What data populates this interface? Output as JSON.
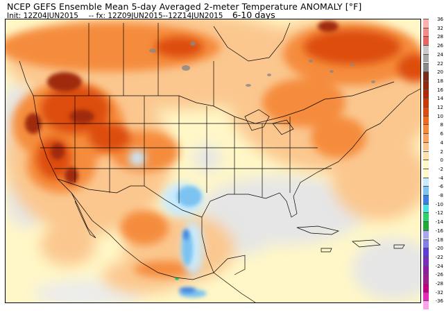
{
  "header": {
    "title": "NCEP GEFS Ensemble Mean 5-day Averaged 2-meter Temperature ANOMALY [°F]",
    "init_label": "Init:",
    "init_value": "12Z04JUN2015",
    "dashes": "--",
    "fx_label": "fx:",
    "fx_value": "12Z09JUN2015--12Z14JUN2015",
    "period": "6-10 days"
  },
  "legend": {
    "levels": [
      "36",
      "32",
      "28",
      "26",
      "24",
      "22",
      "20",
      "18",
      "16",
      "14",
      "12",
      "10",
      "8",
      "6",
      "4",
      "2",
      "0",
      "-2",
      "-4",
      "-6",
      "-8",
      "-10",
      "-12",
      "-14",
      "-16",
      "-18",
      "-20",
      "-22",
      "-24",
      "-26",
      "-28",
      "-32",
      "-36"
    ],
    "colors": [
      "#f9b1ae",
      "#f28c88",
      "#e96561",
      "#c9c9c9",
      "#a8a8a8",
      "#8a8a8a",
      "#7a2a1a",
      "#8f2a10",
      "#b02a05",
      "#c83a08",
      "#dd4d10",
      "#ef6b1f",
      "#f58c3d",
      "#f9a664",
      "#fbc78f",
      "#fde3a9",
      "#fff7c7",
      "#fff7c7",
      "#c9eafc",
      "#7cc3f1",
      "#3c7fe0",
      "#4be0e6",
      "#2fd36d",
      "#27a83a",
      "#a7a7ef",
      "#7f7fe4",
      "#5c3ed2",
      "#7a2fbf",
      "#8b1fa0",
      "#a01d8b",
      "#c0007c",
      "#e62ab8",
      "#fba3ea"
    ]
  },
  "map": {
    "description_colors": {
      "ocean_neutral": "#e8e8e8",
      "near_normal": "#fff7c7",
      "warm_light": "#fbc78f",
      "warm_medium": "#f58c3d",
      "warm_strong": "#dd4d10",
      "warm_extreme": "#a02a0a",
      "cool_light": "#c9eafc",
      "cool_medium": "#7cc3f1",
      "cool_strong": "#3c7fe0",
      "cool_extreme": "#2fd36d"
    }
  }
}
